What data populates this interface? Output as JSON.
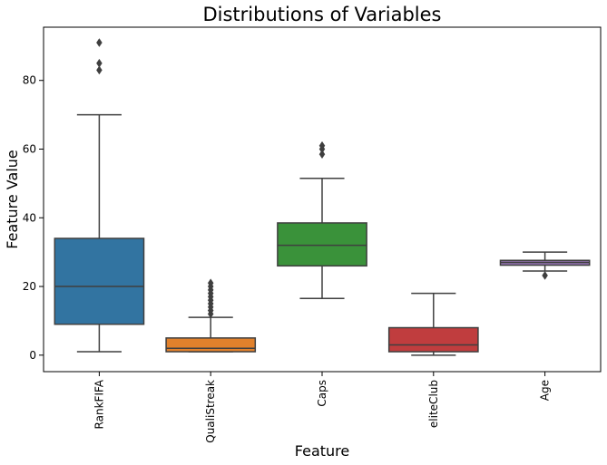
{
  "chart_data": {
    "type": "box",
    "title": "Distributions of Variables",
    "xlabel": "Feature",
    "ylabel": "Feature Value",
    "ylim": [
      -4.8,
      95.5
    ],
    "yticks": [
      0,
      20,
      40,
      60,
      80
    ],
    "grid": false,
    "categories": [
      "RankFIFA",
      "QualiStreak",
      "Caps",
      "eliteClub",
      "Age"
    ],
    "boxes": [
      {
        "name": "RankFIFA",
        "color": "#3274a1",
        "whislo": 1,
        "q1": 9,
        "med": 20,
        "q3": 34,
        "whishi": 70,
        "fliers": [
          83,
          85,
          91
        ]
      },
      {
        "name": "QualiStreak",
        "color": "#e1812c",
        "whislo": 1,
        "q1": 1,
        "med": 2,
        "q3": 5,
        "whishi": 11,
        "fliers": [
          12,
          13,
          14,
          15,
          16,
          17,
          18,
          19,
          20,
          21
        ]
      },
      {
        "name": "Caps",
        "color": "#3a923a",
        "whislo": 16.5,
        "q1": 26,
        "med": 32,
        "q3": 38.5,
        "whishi": 51.5,
        "fliers": [
          58.5,
          60,
          61
        ]
      },
      {
        "name": "eliteClub",
        "color": "#c03d3e",
        "whislo": 0,
        "q1": 1,
        "med": 3,
        "q3": 8,
        "whishi": 18,
        "fliers": []
      },
      {
        "name": "Age",
        "color": "#9372b2",
        "whislo": 24.5,
        "q1": 26.2,
        "med": 27,
        "q3": 27.6,
        "whishi": 30,
        "fliers": [
          23.2
        ]
      }
    ]
  }
}
